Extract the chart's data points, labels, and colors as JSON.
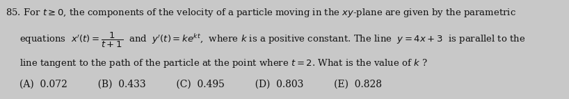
{
  "background_color": "#c8c8c8",
  "text_color": "#111111",
  "figsize": [
    8.18,
    1.43
  ],
  "dpi": 100,
  "fontsize": 9.5
}
